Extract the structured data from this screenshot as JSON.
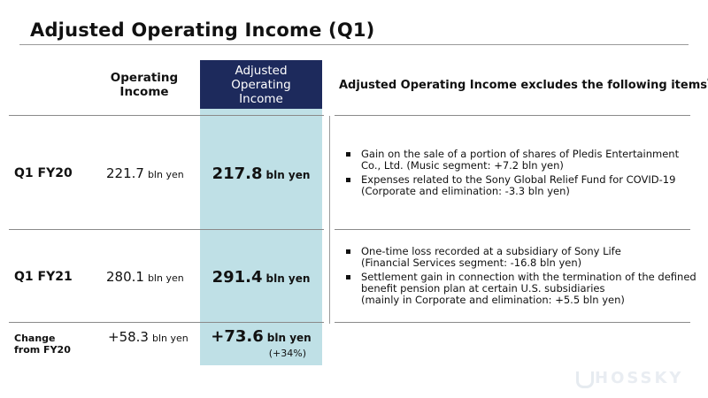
{
  "title": "Adjusted Operating Income (Q1)",
  "columns": {
    "operating_income": [
      "Operating",
      "Income"
    ],
    "adjusted_operating_income": [
      "Adjusted",
      "Operating",
      "Income"
    ],
    "excludes_heading": "Adjusted Operating Income excludes the following items",
    "excludes_footnote_mark": "*"
  },
  "unit": "bln yen",
  "rows": [
    {
      "label": "Q1 FY20",
      "operating_income": "221.7",
      "adjusted_operating_income": "217.8",
      "items": [
        [
          "Gain on the sale of a portion of shares of Pledis Entertainment",
          "Co., Ltd. (Music segment: +7.2 bln yen)"
        ],
        [
          "Expenses related to the Sony Global Relief Fund for COVID-19",
          "(Corporate and elimination: -3.3 bln yen)"
        ]
      ]
    },
    {
      "label": "Q1 FY21",
      "operating_income": "280.1",
      "adjusted_operating_income": "291.4",
      "items": [
        [
          "One-time loss recorded at a subsidiary of Sony Life",
          "(Financial Services segment: -16.8 bln yen)"
        ],
        [
          "Settlement gain in connection with the termination of the defined",
          "benefit pension plan at certain U.S. subsidiaries",
          "(mainly in Corporate and elimination: +5.5 bln yen)"
        ]
      ]
    }
  ],
  "change": {
    "label": [
      "Change",
      "from FY20"
    ],
    "operating_income": "+58.3",
    "adjusted_operating_income": "+73.6",
    "adjusted_percent": "(+34%)"
  },
  "watermark": "HOSSKY",
  "colors": {
    "header_navy": "#1d2a5c",
    "highlight_column": "#bfe0e6"
  }
}
